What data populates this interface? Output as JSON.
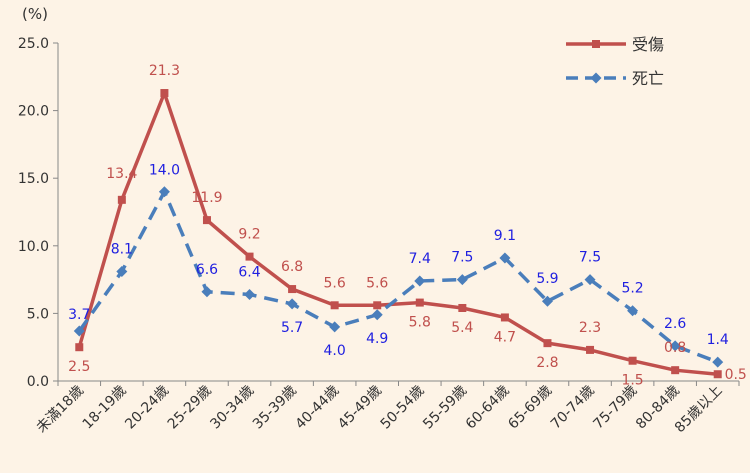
{
  "chart_data": {
    "type": "line",
    "y_unit": "(%)",
    "ylim": [
      0,
      25
    ],
    "y_ticks": [
      "0.0",
      "5.0",
      "10.0",
      "15.0",
      "20.0",
      "25.0"
    ],
    "grid": false,
    "legend_position": "top-right",
    "categories": [
      "未滿18歲",
      "18-19歲",
      "20-24歲",
      "25-29歲",
      "30-34歲",
      "35-39歲",
      "40-44歲",
      "45-49歲",
      "50-54歲",
      "55-59歲",
      "60-64歲",
      "65-69歲",
      "70-74歲",
      "75-79歲",
      "80-84歲",
      "85歲以上"
    ],
    "series": [
      {
        "name": "受傷",
        "color": "#c0504d",
        "style": "solid",
        "marker": "square",
        "values": [
          2.5,
          13.4,
          21.3,
          11.9,
          9.2,
          6.8,
          5.6,
          5.6,
          5.8,
          5.4,
          4.7,
          2.8,
          2.3,
          1.5,
          0.8,
          0.5
        ],
        "labels": [
          "2.5",
          "13.4",
          "21.3",
          "11.9",
          "9.2",
          "6.8",
          "5.6",
          "5.6",
          "5.8",
          "5.4",
          "4.7",
          "2.8",
          "2.3",
          "1.5",
          "0.8",
          "0.5"
        ]
      },
      {
        "name": "死亡",
        "color": "#4a7ebb",
        "style": "dashed",
        "marker": "diamond",
        "label_color": "#1f1fe0",
        "values": [
          3.7,
          8.1,
          14.0,
          6.6,
          6.4,
          5.7,
          4.0,
          4.9,
          7.4,
          7.5,
          9.1,
          5.9,
          7.5,
          5.2,
          2.6,
          1.4
        ],
        "labels": [
          "3.7",
          "8.1",
          "14.0",
          "6.6",
          "6.4",
          "5.7",
          "4.0",
          "4.9",
          "7.4",
          "7.5",
          "9.1",
          "5.9",
          "7.5",
          "5.2",
          "2.6",
          "1.4"
        ]
      }
    ]
  }
}
